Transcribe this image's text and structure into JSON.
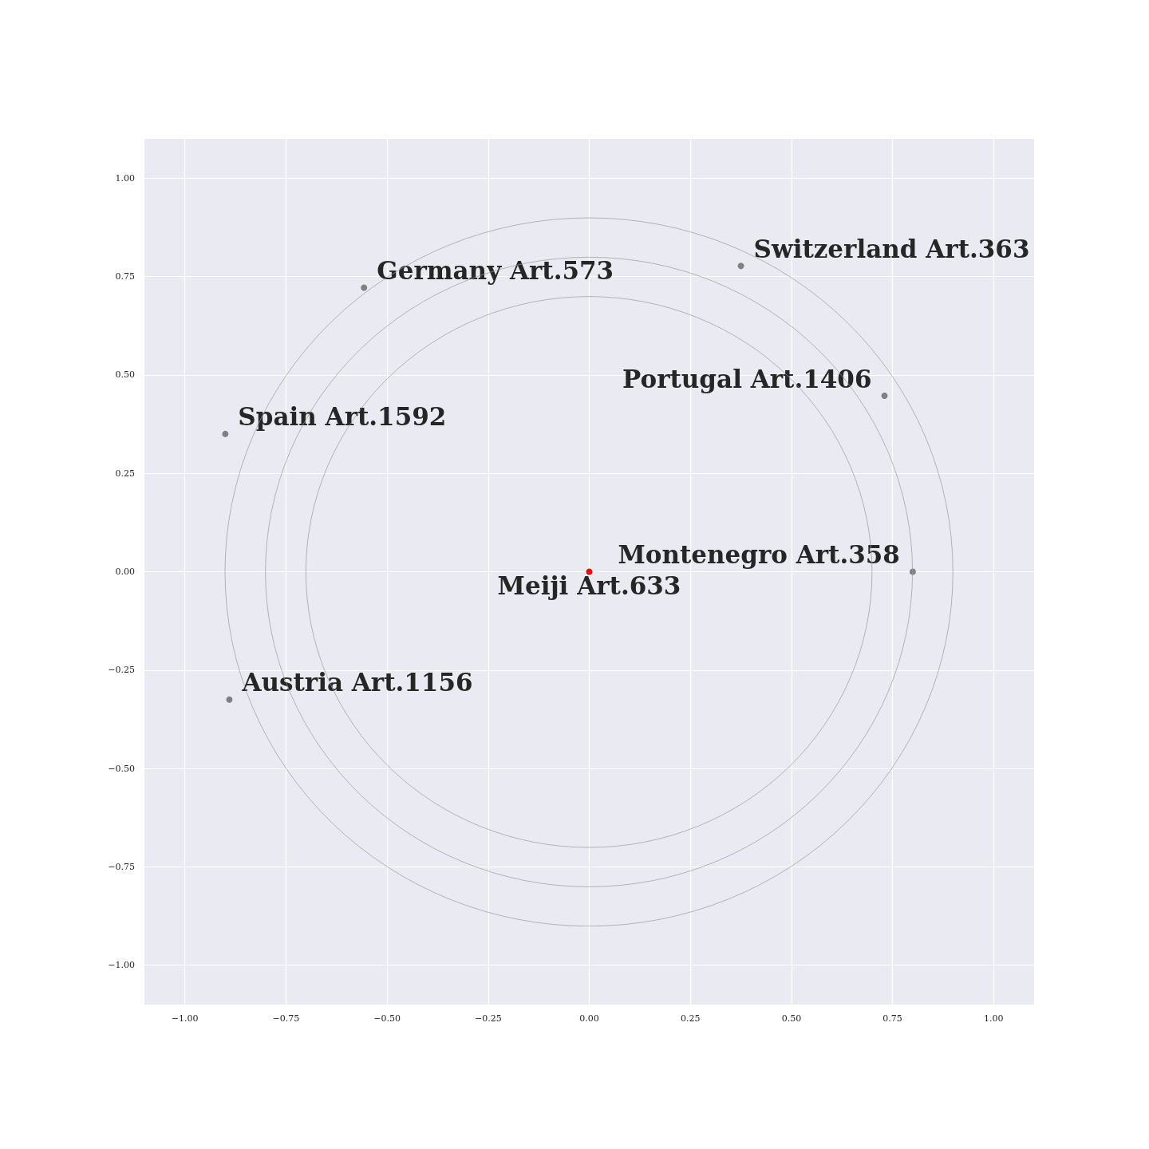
{
  "chart_data": {
    "type": "scatter",
    "xlim": [
      -1.1,
      1.1
    ],
    "ylim": [
      -1.1,
      1.1
    ],
    "xticks": [
      {
        "value": -1,
        "label": "−1.00"
      },
      {
        "value": -0.75,
        "label": "−0.75"
      },
      {
        "value": -0.5,
        "label": "−0.50"
      },
      {
        "value": -0.25,
        "label": "−0.25"
      },
      {
        "value": 0,
        "label": "0.00"
      },
      {
        "value": 0.25,
        "label": "0.25"
      },
      {
        "value": 0.5,
        "label": "0.50"
      },
      {
        "value": 0.75,
        "label": "0.75"
      },
      {
        "value": 1,
        "label": "1.00"
      }
    ],
    "yticks": [
      {
        "value": -1,
        "label": "−1.00"
      },
      {
        "value": -0.75,
        "label": "−0.75"
      },
      {
        "value": -0.5,
        "label": "−0.50"
      },
      {
        "value": -0.25,
        "label": "−0.25"
      },
      {
        "value": 0,
        "label": "0.00"
      },
      {
        "value": 0.25,
        "label": "0.25"
      },
      {
        "value": 0.5,
        "label": "0.50"
      },
      {
        "value": 0.75,
        "label": "0.75"
      },
      {
        "value": 1,
        "label": "1.00"
      }
    ],
    "grid": true,
    "marker": "circle",
    "series": [
      {
        "color": "#808080",
        "x": [
          -0.557,
          0.375,
          0.73,
          -0.9,
          -0.89,
          0.8
        ],
        "values": [
          0.722,
          0.777,
          0.447,
          0.35,
          -0.325,
          0
        ]
      },
      {
        "color": "#ff0000",
        "x": [
          0
        ],
        "values": [
          0
        ]
      }
    ],
    "annotations": [
      {
        "text": "Germany Art.573",
        "x": -0.557,
        "y": 0.722
      },
      {
        "text": "Switzerland Art.363",
        "x": 0.375,
        "y": 0.777
      },
      {
        "text": "Portugal Art.1406",
        "x": 0.73,
        "y": 0.447
      },
      {
        "text": "Spain Art.1592",
        "x": -0.9,
        "y": 0.35
      },
      {
        "text": "Austria Art.1156",
        "x": -0.89,
        "y": -0.325
      },
      {
        "text": "Montenegro Art.358",
        "x": 0.8,
        "y": 0
      },
      {
        "text": "Meiji Art.633",
        "x": 0,
        "y": 0
      }
    ]
  }
}
